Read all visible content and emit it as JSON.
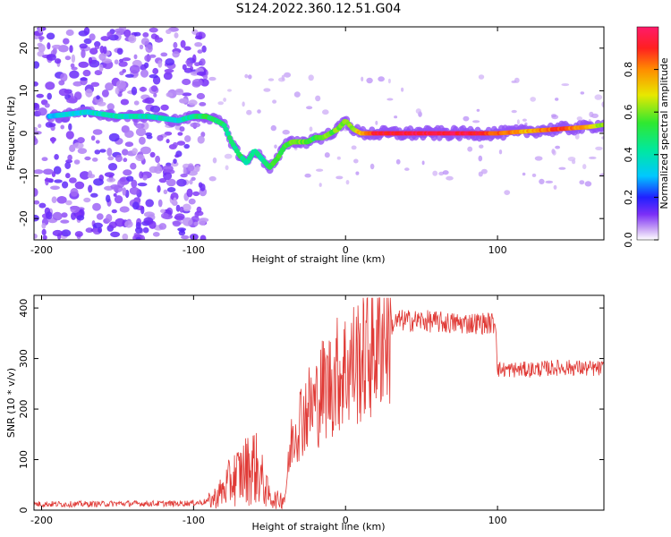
{
  "title": "S124.2022.360.12.51.G04",
  "chart_data": [
    {
      "type": "heatmap",
      "title": "S124.2022.360.12.51.G04",
      "xlabel": "Height of straight line (km)",
      "ylabel": "Frequency (Hz)",
      "xlim": [
        -205,
        170
      ],
      "ylim": [
        -25,
        25
      ],
      "x_ticks": [
        -200,
        -100,
        0,
        100
      ],
      "y_ticks": [
        -20,
        -10,
        0,
        10,
        20
      ],
      "colorbar": {
        "label": "Normalized spectral amplitude",
        "range": [
          0,
          1
        ],
        "ticks": [
          0.0,
          0.2,
          0.4,
          0.6,
          0.8
        ]
      },
      "ridge": {
        "x": [
          -195,
          -170,
          -150,
          -130,
          -110,
          -100,
          -92,
          -85,
          -80,
          -75,
          -70,
          -65,
          -60,
          -55,
          -50,
          -45,
          -40,
          -35,
          -30,
          -25,
          -20,
          -15,
          -10,
          -5,
          0,
          5,
          10,
          20,
          40,
          60,
          80,
          100,
          120,
          140,
          160,
          170
        ],
        "freq": [
          4,
          5,
          4,
          4,
          3,
          4,
          4,
          3,
          2,
          -2,
          -5,
          -7,
          -4,
          -6,
          -8,
          -6,
          -3,
          -2,
          -2,
          -2,
          -1,
          -1,
          0,
          1,
          3,
          1,
          0,
          0,
          0,
          0,
          0,
          0,
          0.5,
          1,
          1.5,
          2
        ],
        "amplitude": [
          0.3,
          0.35,
          0.4,
          0.4,
          0.35,
          0.45,
          0.5,
          0.5,
          0.45,
          0.45,
          0.5,
          0.4,
          0.45,
          0.4,
          0.5,
          0.55,
          0.55,
          0.6,
          0.6,
          0.55,
          0.5,
          0.6,
          0.55,
          0.6,
          0.6,
          0.6,
          0.75,
          0.92,
          0.95,
          0.95,
          0.95,
          0.85,
          0.75,
          0.88,
          0.75,
          0.6
        ]
      },
      "noise_region_x": [
        -205,
        -92
      ]
    },
    {
      "type": "line",
      "xlabel": "Height of straight line (km)",
      "ylabel": "SNR (10 * v/v)",
      "xlim": [
        -205,
        170
      ],
      "ylim": [
        0,
        425
      ],
      "x_ticks": [
        -200,
        -100,
        0,
        100
      ],
      "y_ticks": [
        0,
        100,
        200,
        300,
        400
      ],
      "color": "#e03a36",
      "series": {
        "x": [
          -205,
          -190,
          -170,
          -150,
          -130,
          -110,
          -95,
          -88,
          -80,
          -75,
          -70,
          -65,
          -60,
          -55,
          -50,
          -45,
          -40,
          -35,
          -30,
          -25,
          -20,
          -15,
          -10,
          -5,
          0,
          5,
          10,
          15,
          20,
          25,
          30,
          35,
          40,
          50,
          60,
          70,
          80,
          90,
          99,
          100,
          101,
          110,
          120,
          130,
          140,
          150,
          160,
          170
        ],
        "y": [
          12,
          12,
          12,
          13,
          13,
          13,
          15,
          20,
          40,
          60,
          70,
          80,
          90,
          60,
          25,
          20,
          25,
          150,
          180,
          200,
          210,
          240,
          250,
          270,
          280,
          290,
          300,
          310,
          330,
          355,
          365,
          375,
          375,
          375,
          372,
          370,
          370,
          370,
          370,
          280,
          278,
          278,
          278,
          280,
          282,
          282,
          280,
          280
        ]
      }
    }
  ]
}
